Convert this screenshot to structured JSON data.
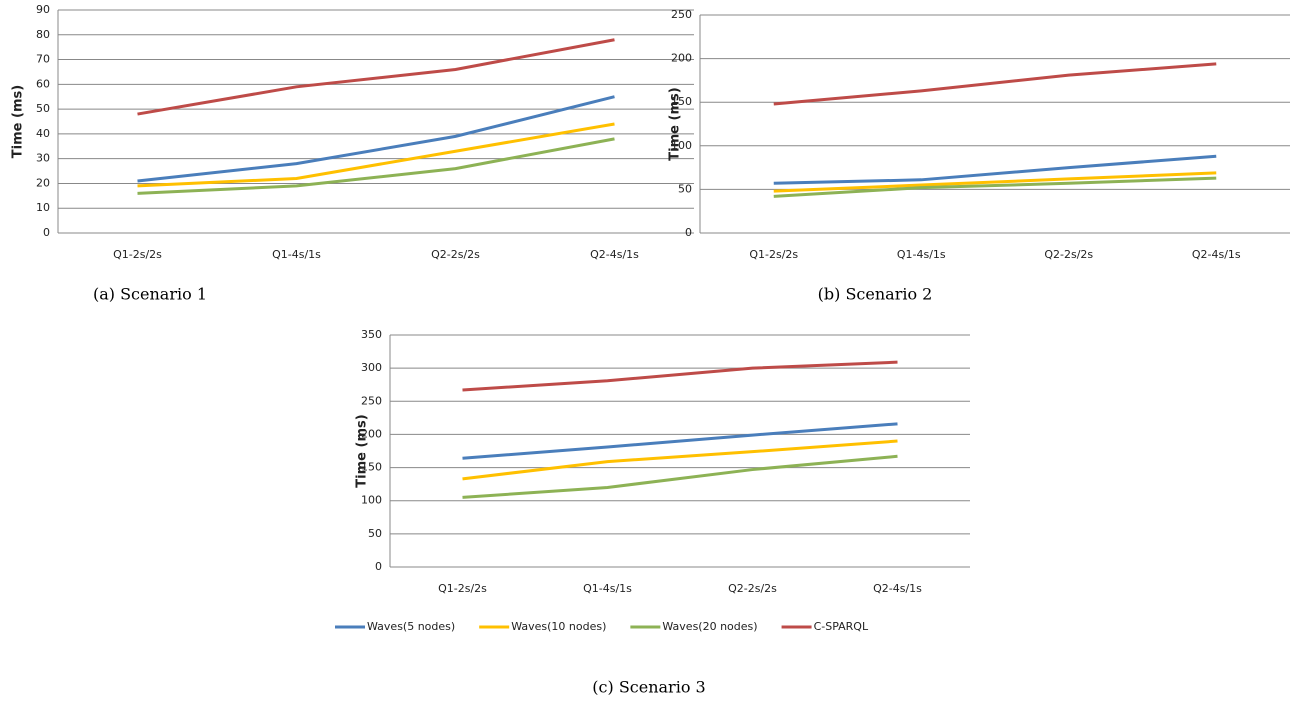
{
  "chart_data": [
    {
      "type": "line",
      "caption": "(a) Scenario 1",
      "y_label": "Time (ms)",
      "categories": [
        "Q1-2s/2s",
        "Q1-4s/1s",
        "Q2-2s/2s",
        "Q2-4s/1s"
      ],
      "ylim": [
        0,
        90
      ],
      "yticks": [
        0,
        10,
        20,
        30,
        40,
        50,
        60,
        70,
        80,
        90
      ],
      "grid": true,
      "series": [
        {
          "color": "#4a7ebb",
          "values": [
            21,
            28,
            39,
            55
          ]
        },
        {
          "color": "#ffc000",
          "values": [
            19,
            22,
            33,
            44
          ]
        },
        {
          "color": "#8db255",
          "values": [
            16,
            19,
            26,
            38
          ]
        },
        {
          "color": "#be4b48",
          "values": [
            48,
            59,
            66,
            78
          ]
        }
      ]
    },
    {
      "type": "line",
      "caption": "(b) Scenario 2",
      "y_label": "Time (ms)",
      "categories": [
        "Q1-2s/2s",
        "Q1-4s/1s",
        "Q2-2s/2s",
        "Q2-4s/1s"
      ],
      "ylim": [
        0,
        250
      ],
      "yticks": [
        0,
        50,
        100,
        150,
        200,
        250
      ],
      "grid": true,
      "series": [
        {
          "color": "#4a7ebb",
          "values": [
            57,
            61,
            75,
            88
          ]
        },
        {
          "color": "#ffc000",
          "values": [
            48,
            55,
            62,
            69
          ]
        },
        {
          "color": "#8db255",
          "values": [
            42,
            52,
            57,
            63
          ]
        },
        {
          "color": "#be4b48",
          "values": [
            148,
            163,
            181,
            194
          ]
        }
      ]
    },
    {
      "type": "line",
      "caption": "(c) Scenario 3",
      "y_label": "Time (ms)",
      "categories": [
        "Q1-2s/2s",
        "Q1-4s/1s",
        "Q2-2s/2s",
        "Q2-4s/1s"
      ],
      "ylim": [
        0,
        350
      ],
      "yticks": [
        0,
        50,
        100,
        150,
        200,
        250,
        300,
        350
      ],
      "grid": true,
      "series": [
        {
          "name": "Waves(5 nodes)",
          "color": "#4a7ebb",
          "values": [
            164,
            181,
            199,
            216
          ]
        },
        {
          "name": "Waves(10 nodes)",
          "color": "#ffc000",
          "values": [
            133,
            159,
            174,
            190
          ]
        },
        {
          "name": "Waves(20 nodes)",
          "color": "#8db255",
          "values": [
            105,
            120,
            147,
            167
          ]
        },
        {
          "name": "C-SPARQL",
          "color": "#be4b48",
          "values": [
            267,
            281,
            300,
            309
          ]
        }
      ]
    }
  ]
}
